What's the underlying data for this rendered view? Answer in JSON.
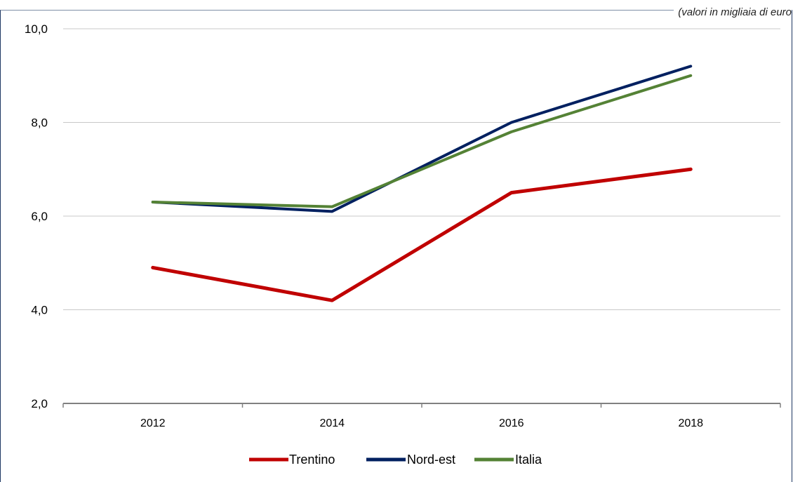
{
  "note": "(valori in migliaia di euro",
  "chart_data": {
    "type": "line",
    "x": [
      "2012",
      "2014",
      "2016",
      "2018"
    ],
    "ylim": [
      2.0,
      10.0
    ],
    "yticks": [
      "2,0",
      "4,0",
      "6,0",
      "8,0",
      "10,0"
    ],
    "grid": true,
    "legend_position": "bottom",
    "series": [
      {
        "name": "Trentino",
        "color": "#c00000",
        "values": [
          4.9,
          4.2,
          6.5,
          7.0
        ]
      },
      {
        "name": "Nord-est",
        "color": "#002060",
        "values": [
          6.3,
          6.1,
          8.0,
          9.2
        ]
      },
      {
        "name": "Italia",
        "color": "#548235",
        "values": [
          6.3,
          6.2,
          7.8,
          9.0
        ]
      }
    ]
  }
}
